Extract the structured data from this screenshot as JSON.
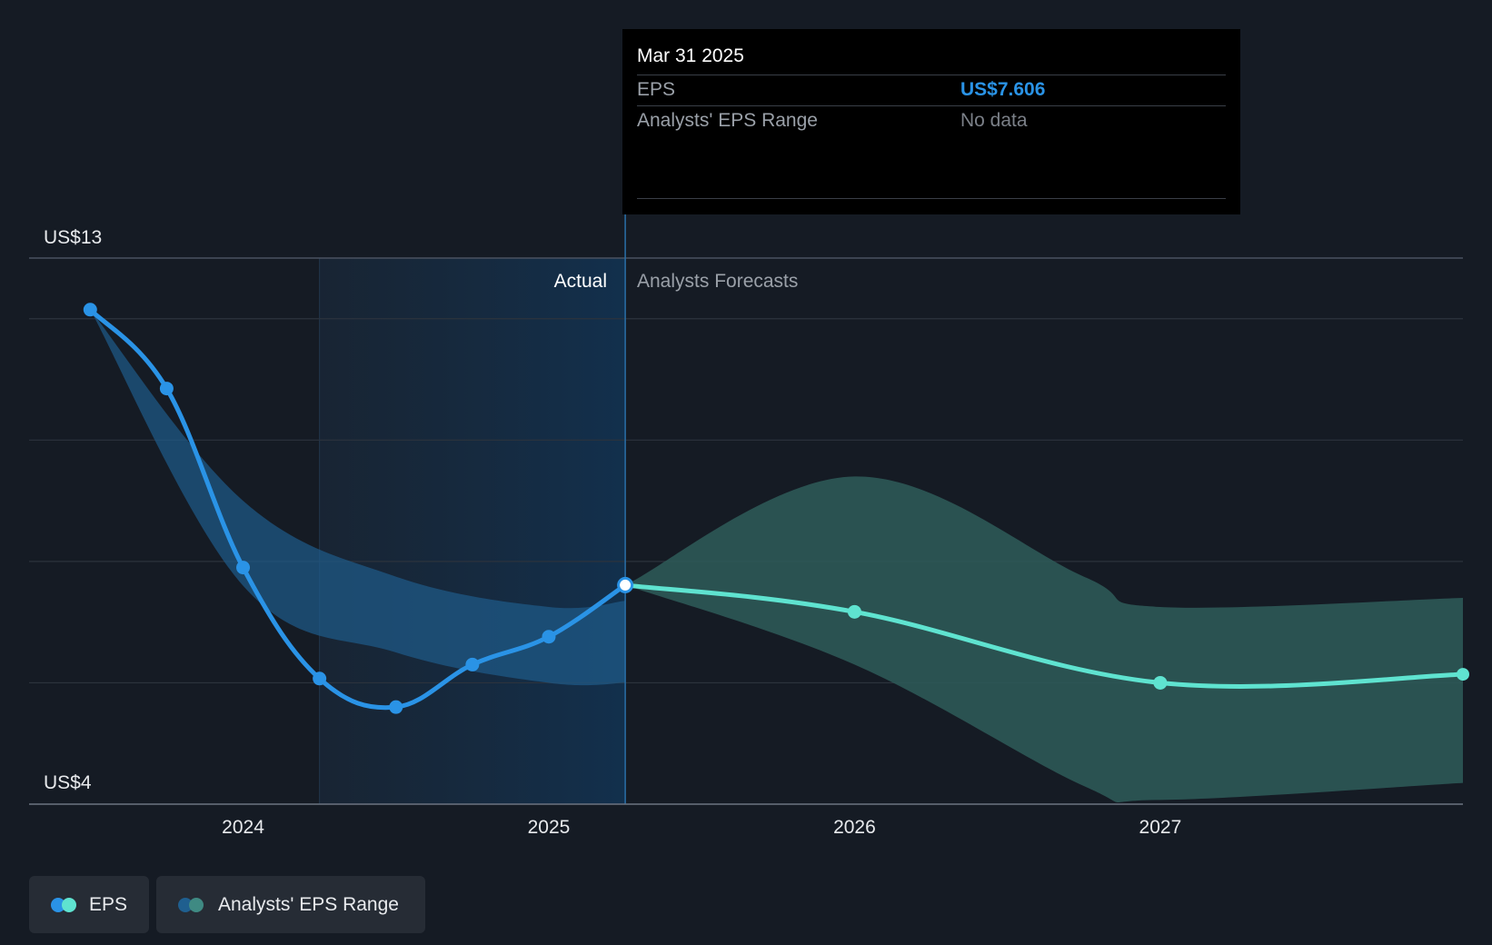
{
  "tooltip": {
    "date": "Mar 31 2025",
    "eps_label": "EPS",
    "eps_value": "US$7.606",
    "range_label": "Analysts' EPS Range",
    "range_value": "No data"
  },
  "legend": {
    "items": [
      {
        "label": "EPS",
        "colors": [
          "#2a93e6",
          "#5fe3d0"
        ]
      },
      {
        "label": "Analysts' EPS Range",
        "colors": [
          "#1f5f8f",
          "#3f8a83"
        ]
      }
    ]
  },
  "colors": {
    "background": "#151b24",
    "actual_line": "#2a93e6",
    "forecast_line": "#5fe3d0",
    "actual_band": "#1e5a88",
    "forecast_band": "#2e5a58",
    "grid": "#2c333d"
  },
  "chart_data": {
    "type": "line",
    "title": "",
    "y_min_label": "US$4",
    "y_max_label": "US$13",
    "ylim": [
      4,
      13
    ],
    "xlim": [
      2023.3,
      2027.99
    ],
    "gridlines": [
      13,
      12,
      10,
      8,
      6,
      4
    ],
    "x_ticks": [
      {
        "value": 2024.0,
        "label": "2024"
      },
      {
        "value": 2025.0,
        "label": "2025"
      },
      {
        "value": 2026.0,
        "label": "2026"
      },
      {
        "value": 2027.0,
        "label": "2027"
      }
    ],
    "actual_label": "Actual",
    "forecast_label": "Analysts Forecasts",
    "highlight_start": 2024.25,
    "divider_x": 2025.25,
    "series": [
      {
        "name": "EPS (Actual)",
        "points": [
          {
            "x": 2023.5,
            "y": 12.15
          },
          {
            "x": 2023.75,
            "y": 10.85
          },
          {
            "x": 2024.0,
            "y": 7.9
          },
          {
            "x": 2024.25,
            "y": 6.07
          },
          {
            "x": 2024.5,
            "y": 5.6
          },
          {
            "x": 2024.75,
            "y": 6.3
          },
          {
            "x": 2025.0,
            "y": 6.76
          },
          {
            "x": 2025.25,
            "y": 7.61
          }
        ]
      },
      {
        "name": "EPS (Forecast)",
        "points": [
          {
            "x": 2025.25,
            "y": 7.61
          },
          {
            "x": 2026.0,
            "y": 7.17
          },
          {
            "x": 2027.0,
            "y": 6.0
          },
          {
            "x": 2027.99,
            "y": 6.14
          }
        ]
      }
    ],
    "ranges": [
      {
        "name": "Analysts' EPS Range (Actual)",
        "upper": [
          {
            "x": 2023.5,
            "y": 12.15
          },
          {
            "x": 2024.0,
            "y": 9.0
          },
          {
            "x": 2024.5,
            "y": 7.75
          },
          {
            "x": 2025.0,
            "y": 7.25
          },
          {
            "x": 2025.25,
            "y": 7.35
          }
        ],
        "lower": [
          {
            "x": 2023.5,
            "y": 12.15
          },
          {
            "x": 2024.0,
            "y": 7.6
          },
          {
            "x": 2024.5,
            "y": 6.5
          },
          {
            "x": 2025.0,
            "y": 6.0
          },
          {
            "x": 2025.25,
            "y": 6.0
          }
        ]
      },
      {
        "name": "Analysts' EPS Range (Forecast)",
        "upper": [
          {
            "x": 2025.25,
            "y": 7.61
          },
          {
            "x": 2026.0,
            "y": 9.4
          },
          {
            "x": 2026.75,
            "y": 7.75
          },
          {
            "x": 2027.0,
            "y": 7.25
          },
          {
            "x": 2027.99,
            "y": 7.4
          }
        ],
        "lower": [
          {
            "x": 2025.25,
            "y": 7.61
          },
          {
            "x": 2026.0,
            "y": 6.3
          },
          {
            "x": 2026.75,
            "y": 4.3
          },
          {
            "x": 2027.0,
            "y": 4.07
          },
          {
            "x": 2027.99,
            "y": 4.35
          }
        ]
      }
    ]
  }
}
